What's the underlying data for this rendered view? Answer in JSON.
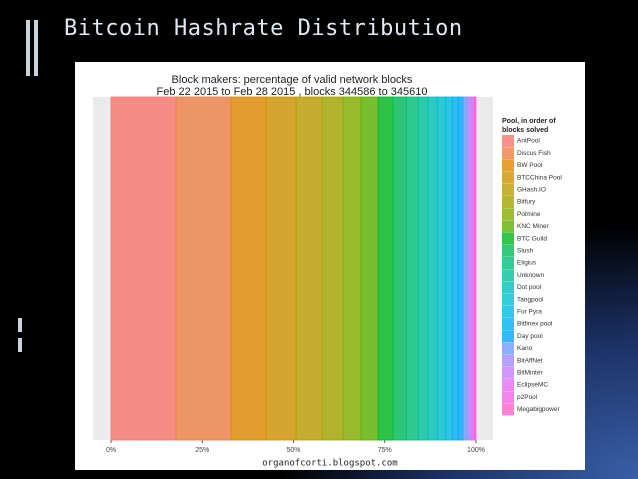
{
  "slide": {
    "title": "Bitcoin Hashrate Distribution"
  },
  "chart_data": {
    "type": "bar",
    "orientation": "horizontal",
    "stacked": true,
    "title": "Block makers: percentage of valid network blocks",
    "subtitle": "Feb 22 2015 to Feb 28 2015 , blocks  344586 to 345610",
    "legend_title": [
      "Pool, in order of",
      "blocks solved"
    ],
    "source": "organofcorti.blogspot.com",
    "categories": [
      null
    ],
    "xlim": [
      0,
      100
    ],
    "xticks": [
      {
        "value": 0,
        "label": "0%"
      },
      {
        "value": 25,
        "label": "25%"
      },
      {
        "value": 50,
        "label": "50%"
      },
      {
        "value": 75,
        "label": "75%"
      },
      {
        "value": 100,
        "label": "100%"
      }
    ],
    "legend": "right",
    "series": [
      {
        "name": "AntPool",
        "color": "#F8766D",
        "values": [
          17.8
        ]
      },
      {
        "name": "Discus Fish",
        "color": "#EE8043",
        "values": [
          15.1
        ]
      },
      {
        "name": "BW Pool",
        "color": "#E18A00",
        "values": [
          9.6
        ]
      },
      {
        "name": "BTCChina Pool",
        "color": "#D09400",
        "values": [
          8.2
        ]
      },
      {
        "name": "GHash.IO",
        "color": "#BB9D00",
        "values": [
          7.1
        ]
      },
      {
        "name": "Bitfury",
        "color": "#A3A500",
        "values": [
          5.8
        ]
      },
      {
        "name": "Polmine",
        "color": "#85AD00",
        "values": [
          4.9
        ]
      },
      {
        "name": "KNC Miner",
        "color": "#5BB300",
        "values": [
          4.7
        ]
      },
      {
        "name": "BTC Guild",
        "color": "#00B81F",
        "values": [
          4.1
        ]
      },
      {
        "name": "Slush",
        "color": "#00BC59",
        "values": [
          3.6
        ]
      },
      {
        "name": "Eligius",
        "color": "#00BF7D",
        "values": [
          3.3
        ]
      },
      {
        "name": "Unknown",
        "color": "#00C19C",
        "values": [
          2.7
        ]
      },
      {
        "name": "Dot pool",
        "color": "#00C1B7",
        "values": [
          2.5
        ]
      },
      {
        "name": "Tangpool",
        "color": "#00BFCF",
        "values": [
          2.2
        ]
      },
      {
        "name": "For Pyra",
        "color": "#00BAE3",
        "values": [
          1.9
        ]
      },
      {
        "name": "Bitfinex pool",
        "color": "#00B2F3",
        "values": [
          1.6
        ]
      },
      {
        "name": "Day pool",
        "color": "#00A7FF",
        "values": [
          1.4
        ]
      },
      {
        "name": "Kano",
        "color": "#6F9AFF",
        "values": [
          1.1
        ]
      },
      {
        "name": "BitAffNet",
        "color": "#A58AFF",
        "values": [
          0.8
        ]
      },
      {
        "name": "BitMinter",
        "color": "#C77CFF",
        "values": [
          0.5
        ]
      },
      {
        "name": "EclipseMC",
        "color": "#E26EF7",
        "values": [
          0.5
        ]
      },
      {
        "name": "p2Pool",
        "color": "#F365E6",
        "values": [
          0.3
        ]
      },
      {
        "name": "Megabigpower",
        "color": "#FE61CF",
        "values": [
          0.3
        ]
      }
    ]
  }
}
